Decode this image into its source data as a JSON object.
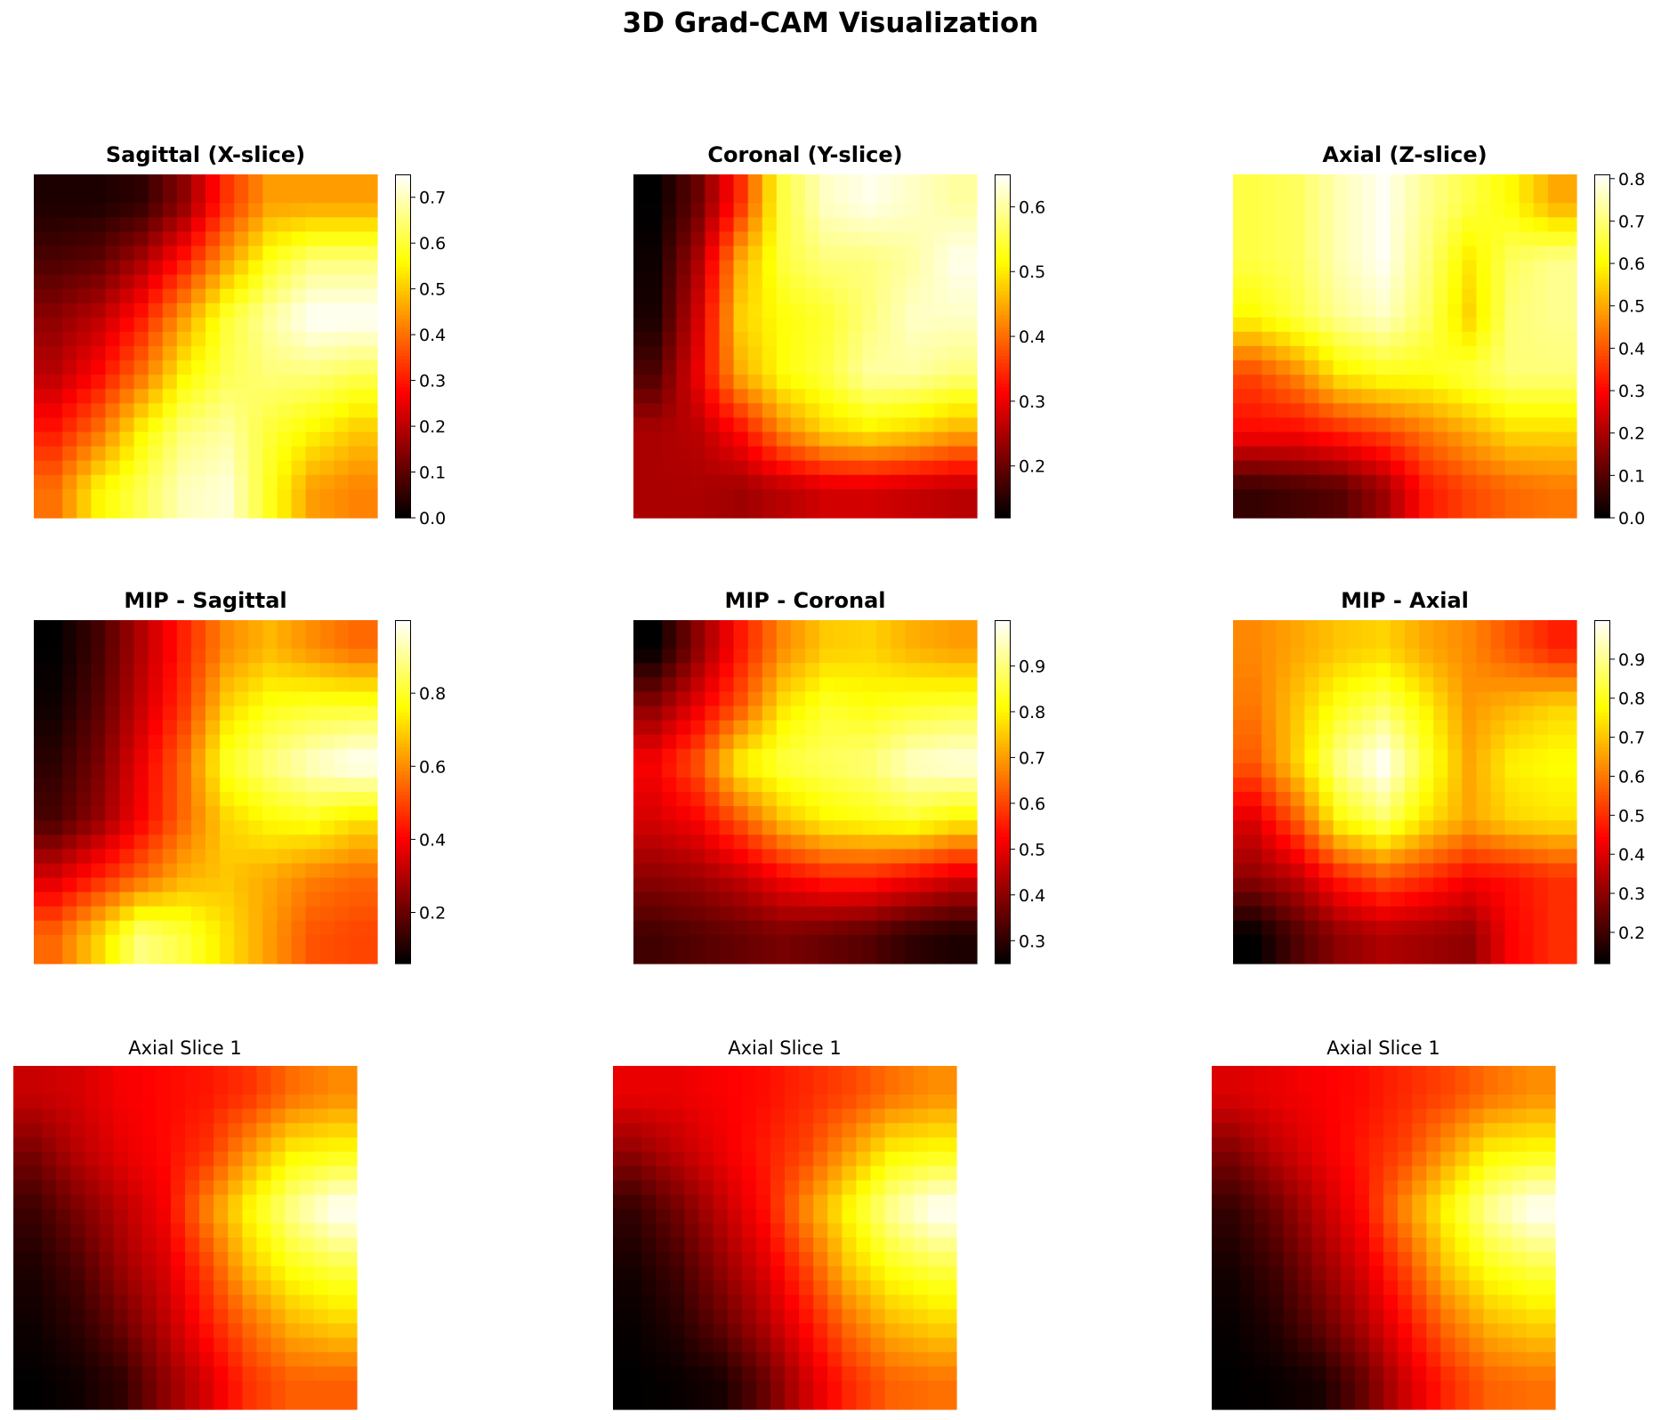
{
  "suptitle": "3D Grad-CAM Visualization",
  "colormap": "hot",
  "chart_data": [
    {
      "type": "heatmap",
      "title": "Sagittal (X-slice)",
      "title_bold": true,
      "colorbar": {
        "vmin": 0.0,
        "vmax": 0.75,
        "ticks": [
          0.0,
          0.1,
          0.2,
          0.3,
          0.4,
          0.5,
          0.6,
          0.7
        ],
        "tick_labels": [
          "0.0",
          "0.1",
          "0.2",
          "0.3",
          "0.4",
          "0.5",
          "0.6",
          "0.7"
        ]
      },
      "values": [
        [
          0.03,
          0.03,
          0.05,
          0.15,
          0.33,
          0.45,
          0.45,
          0.45
        ],
        [
          0.08,
          0.1,
          0.18,
          0.3,
          0.45,
          0.58,
          0.65,
          0.65
        ],
        [
          0.15,
          0.2,
          0.3,
          0.45,
          0.6,
          0.68,
          0.75,
          0.75
        ],
        [
          0.2,
          0.28,
          0.4,
          0.55,
          0.62,
          0.65,
          0.65,
          0.62
        ],
        [
          0.3,
          0.4,
          0.55,
          0.65,
          0.68,
          0.6,
          0.55,
          0.5
        ],
        [
          0.4,
          0.55,
          0.62,
          0.7,
          0.72,
          0.58,
          0.45,
          0.42
        ]
      ]
    },
    {
      "type": "heatmap",
      "title": "Coronal (Y-slice)",
      "title_bold": true,
      "colorbar": {
        "vmin": 0.12,
        "vmax": 0.65,
        "ticks": [
          0.2,
          0.3,
          0.4,
          0.5,
          0.6
        ],
        "tick_labels": [
          "0.2",
          "0.3",
          "0.4",
          "0.5",
          "0.6"
        ]
      },
      "values": [
        [
          0.12,
          0.2,
          0.35,
          0.55,
          0.62,
          0.64,
          0.62,
          0.6
        ],
        [
          0.13,
          0.25,
          0.45,
          0.55,
          0.58,
          0.58,
          0.6,
          0.64
        ],
        [
          0.14,
          0.28,
          0.48,
          0.52,
          0.54,
          0.58,
          0.62,
          0.62
        ],
        [
          0.18,
          0.3,
          0.45,
          0.52,
          0.55,
          0.6,
          0.6,
          0.58
        ],
        [
          0.25,
          0.26,
          0.32,
          0.42,
          0.48,
          0.5,
          0.48,
          0.45
        ],
        [
          0.25,
          0.25,
          0.24,
          0.26,
          0.28,
          0.28,
          0.27,
          0.26
        ]
      ]
    },
    {
      "type": "heatmap",
      "title": "Axial (Z-slice)",
      "title_bold": true,
      "colorbar": {
        "vmin": 0.0,
        "vmax": 0.81,
        "ticks": [
          0.0,
          0.1,
          0.2,
          0.3,
          0.4,
          0.5,
          0.6,
          0.7,
          0.8
        ],
        "tick_labels": [
          "0.0",
          "0.1",
          "0.2",
          "0.3",
          "0.4",
          "0.5",
          "0.6",
          "0.7",
          "0.8"
        ]
      },
      "values": [
        [
          0.66,
          0.68,
          0.75,
          0.8,
          0.72,
          0.66,
          0.6,
          0.5
        ],
        [
          0.66,
          0.68,
          0.75,
          0.8,
          0.7,
          0.58,
          0.68,
          0.72
        ],
        [
          0.6,
          0.66,
          0.72,
          0.76,
          0.68,
          0.55,
          0.7,
          0.72
        ],
        [
          0.38,
          0.46,
          0.58,
          0.62,
          0.62,
          0.66,
          0.7,
          0.7
        ],
        [
          0.3,
          0.3,
          0.34,
          0.38,
          0.44,
          0.5,
          0.56,
          0.56
        ],
        [
          0.06,
          0.08,
          0.1,
          0.18,
          0.32,
          0.38,
          0.42,
          0.44
        ]
      ]
    },
    {
      "type": "heatmap",
      "title": "MIP - Sagittal",
      "title_bold": true,
      "colorbar": {
        "vmin": 0.06,
        "vmax": 1.0,
        "ticks": [
          0.2,
          0.4,
          0.6,
          0.8
        ],
        "tick_labels": [
          "0.2",
          "0.4",
          "0.6",
          "0.8"
        ]
      },
      "values": [
        [
          0.06,
          0.15,
          0.3,
          0.45,
          0.6,
          0.66,
          0.6,
          0.55
        ],
        [
          0.08,
          0.18,
          0.33,
          0.48,
          0.7,
          0.78,
          0.8,
          0.8
        ],
        [
          0.12,
          0.22,
          0.38,
          0.55,
          0.8,
          0.88,
          0.95,
          1.0
        ],
        [
          0.16,
          0.26,
          0.4,
          0.55,
          0.7,
          0.76,
          0.78,
          0.72
        ],
        [
          0.35,
          0.45,
          0.55,
          0.65,
          0.68,
          0.64,
          0.58,
          0.55
        ],
        [
          0.55,
          0.7,
          0.88,
          0.82,
          0.72,
          0.62,
          0.52,
          0.5
        ]
      ]
    },
    {
      "type": "heatmap",
      "title": "MIP - Coronal",
      "title_bold": true,
      "colorbar": {
        "vmin": 0.25,
        "vmax": 1.0,
        "ticks": [
          0.3,
          0.4,
          0.5,
          0.6,
          0.7,
          0.8,
          0.9
        ],
        "tick_labels": [
          "0.3",
          "0.4",
          "0.5",
          "0.6",
          "0.7",
          "0.8",
          "0.9"
        ]
      },
      "values": [
        [
          0.25,
          0.4,
          0.55,
          0.68,
          0.75,
          0.76,
          0.72,
          0.7
        ],
        [
          0.4,
          0.5,
          0.62,
          0.78,
          0.84,
          0.82,
          0.84,
          0.85
        ],
        [
          0.52,
          0.62,
          0.8,
          0.86,
          0.88,
          0.9,
          0.96,
          0.98
        ],
        [
          0.48,
          0.52,
          0.62,
          0.74,
          0.8,
          0.82,
          0.84,
          0.8
        ],
        [
          0.4,
          0.42,
          0.46,
          0.52,
          0.56,
          0.56,
          0.52,
          0.48
        ],
        [
          0.32,
          0.34,
          0.36,
          0.38,
          0.36,
          0.34,
          0.3,
          0.28
        ]
      ]
    },
    {
      "type": "heatmap",
      "title": "MIP - Axial",
      "title_bold": true,
      "colorbar": {
        "vmin": 0.12,
        "vmax": 1.0,
        "ticks": [
          0.2,
          0.3,
          0.4,
          0.5,
          0.6,
          0.7,
          0.8,
          0.9
        ],
        "tick_labels": [
          "0.2",
          "0.3",
          "0.4",
          "0.5",
          "0.6",
          "0.7",
          "0.8",
          "0.9"
        ]
      },
      "values": [
        [
          0.62,
          0.66,
          0.7,
          0.72,
          0.66,
          0.62,
          0.55,
          0.48
        ],
        [
          0.6,
          0.7,
          0.8,
          0.86,
          0.76,
          0.64,
          0.68,
          0.72
        ],
        [
          0.56,
          0.72,
          0.9,
          1.0,
          0.82,
          0.66,
          0.76,
          0.78
        ],
        [
          0.4,
          0.56,
          0.78,
          0.86,
          0.74,
          0.66,
          0.72,
          0.74
        ],
        [
          0.3,
          0.36,
          0.48,
          0.55,
          0.5,
          0.44,
          0.46,
          0.5
        ],
        [
          0.12,
          0.22,
          0.3,
          0.34,
          0.32,
          0.3,
          0.44,
          0.5
        ]
      ]
    },
    {
      "type": "heatmap",
      "title": "Axial Slice 1",
      "title_bold": false,
      "values": [
        [
          0.3,
          0.32,
          0.36,
          0.38,
          0.4,
          0.44,
          0.52,
          0.56
        ],
        [
          0.2,
          0.28,
          0.34,
          0.38,
          0.44,
          0.58,
          0.7,
          0.72
        ],
        [
          0.12,
          0.2,
          0.28,
          0.36,
          0.55,
          0.72,
          0.85,
          0.95
        ],
        [
          0.08,
          0.14,
          0.24,
          0.32,
          0.46,
          0.64,
          0.74,
          0.78
        ],
        [
          0.06,
          0.1,
          0.18,
          0.28,
          0.4,
          0.52,
          0.62,
          0.66
        ],
        [
          0.04,
          0.06,
          0.1,
          0.22,
          0.32,
          0.44,
          0.5,
          0.5
        ]
      ]
    },
    {
      "type": "heatmap",
      "title": "Axial Slice 1",
      "title_bold": false,
      "values": [
        [
          0.34,
          0.34,
          0.36,
          0.38,
          0.42,
          0.46,
          0.52,
          0.56
        ],
        [
          0.22,
          0.28,
          0.34,
          0.4,
          0.46,
          0.58,
          0.7,
          0.72
        ],
        [
          0.1,
          0.18,
          0.28,
          0.38,
          0.56,
          0.72,
          0.86,
          0.95
        ],
        [
          0.06,
          0.12,
          0.22,
          0.32,
          0.46,
          0.64,
          0.74,
          0.78
        ],
        [
          0.04,
          0.08,
          0.16,
          0.26,
          0.38,
          0.52,
          0.62,
          0.66
        ],
        [
          0.03,
          0.04,
          0.06,
          0.16,
          0.3,
          0.42,
          0.5,
          0.52
        ]
      ]
    },
    {
      "type": "heatmap",
      "title": "Axial Slice 1",
      "title_bold": false,
      "values": [
        [
          0.32,
          0.34,
          0.36,
          0.38,
          0.42,
          0.46,
          0.52,
          0.56
        ],
        [
          0.2,
          0.28,
          0.34,
          0.4,
          0.46,
          0.58,
          0.7,
          0.72
        ],
        [
          0.1,
          0.18,
          0.28,
          0.38,
          0.56,
          0.72,
          0.86,
          0.95
        ],
        [
          0.06,
          0.12,
          0.22,
          0.32,
          0.46,
          0.64,
          0.74,
          0.78
        ],
        [
          0.04,
          0.08,
          0.16,
          0.26,
          0.38,
          0.52,
          0.62,
          0.66
        ],
        [
          0.03,
          0.04,
          0.06,
          0.16,
          0.3,
          0.42,
          0.5,
          0.52
        ]
      ]
    }
  ]
}
